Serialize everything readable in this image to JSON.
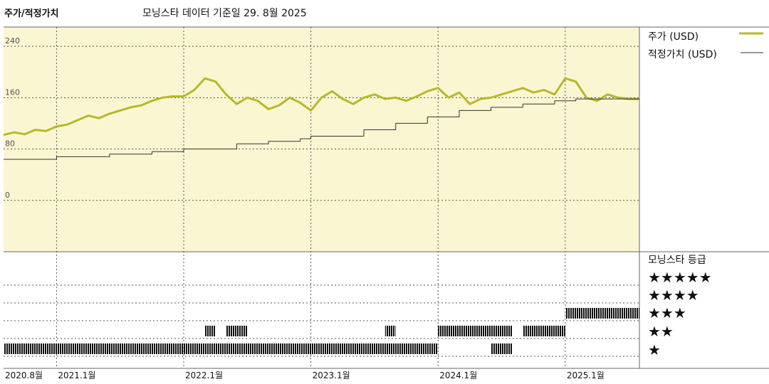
{
  "header": {
    "title": "주가/적정가치",
    "date_label": "모닝스타 데이터 기준일 29. 8월 2025"
  },
  "legend": {
    "price_label": "주가 (USD)",
    "fair_value_label": "적정가치 (USD)",
    "rating_title": "모닝스타 등급",
    "star_rows": [
      "★★★★★",
      "★★★★",
      "★★★",
      "★★",
      "★"
    ]
  },
  "colors": {
    "price": "#b7b82a",
    "fair_value": "#333333",
    "panel_bg": "#faf6d2",
    "grid": "#555555"
  },
  "chart_data": {
    "type": "line",
    "title": "주가/적정가치",
    "x_axis": {
      "start": "2020-08",
      "end": "2025-08",
      "tick_labels": [
        "2020.8월",
        "2021.1월",
        "2022.1월",
        "2023.1월",
        "2024.1월",
        "2025.1월"
      ],
      "tick_dates": [
        "2020-08",
        "2021-01",
        "2022-01",
        "2023-01",
        "2024-01",
        "2025-01"
      ]
    },
    "y_axis": {
      "ticks": [
        0,
        80,
        160,
        240
      ],
      "ylim": [
        -80,
        270
      ]
    },
    "series": [
      {
        "name": "주가 (USD)",
        "points": [
          [
            "2020-08",
            102
          ],
          [
            "2020-09",
            106
          ],
          [
            "2020-10",
            103
          ],
          [
            "2020-11",
            110
          ],
          [
            "2020-12",
            108
          ],
          [
            "2021-01",
            115
          ],
          [
            "2021-02",
            118
          ],
          [
            "2021-03",
            125
          ],
          [
            "2021-04",
            132
          ],
          [
            "2021-05",
            128
          ],
          [
            "2021-06",
            135
          ],
          [
            "2021-07",
            140
          ],
          [
            "2021-08",
            145
          ],
          [
            "2021-09",
            148
          ],
          [
            "2021-10",
            155
          ],
          [
            "2021-11",
            160
          ],
          [
            "2021-12",
            162
          ],
          [
            "2022-01",
            162
          ],
          [
            "2022-02",
            172
          ],
          [
            "2022-03",
            190
          ],
          [
            "2022-04",
            185
          ],
          [
            "2022-05",
            165
          ],
          [
            "2022-06",
            150
          ],
          [
            "2022-07",
            160
          ],
          [
            "2022-08",
            155
          ],
          [
            "2022-09",
            142
          ],
          [
            "2022-10",
            148
          ],
          [
            "2022-11",
            160
          ],
          [
            "2022-12",
            152
          ],
          [
            "2023-01",
            140
          ],
          [
            "2023-02",
            160
          ],
          [
            "2023-03",
            170
          ],
          [
            "2023-04",
            158
          ],
          [
            "2023-05",
            150
          ],
          [
            "2023-06",
            160
          ],
          [
            "2023-07",
            165
          ],
          [
            "2023-08",
            158
          ],
          [
            "2023-09",
            160
          ],
          [
            "2023-10",
            155
          ],
          [
            "2023-11",
            162
          ],
          [
            "2023-12",
            170
          ],
          [
            "2024-01",
            175
          ],
          [
            "2024-02",
            160
          ],
          [
            "2024-03",
            168
          ],
          [
            "2024-04",
            150
          ],
          [
            "2024-05",
            158
          ],
          [
            "2024-06",
            160
          ],
          [
            "2024-07",
            165
          ],
          [
            "2024-08",
            170
          ],
          [
            "2024-09",
            175
          ],
          [
            "2024-10",
            168
          ],
          [
            "2024-11",
            172
          ],
          [
            "2024-12",
            165
          ],
          [
            "2025-01",
            190
          ],
          [
            "2025-02",
            185
          ],
          [
            "2025-03",
            160
          ],
          [
            "2025-04",
            155
          ],
          [
            "2025-05",
            165
          ],
          [
            "2025-06",
            160
          ],
          [
            "2025-07",
            158
          ],
          [
            "2025-08",
            158
          ]
        ]
      },
      {
        "name": "적정가치 (USD)",
        "points": [
          [
            "2020-08",
            64
          ],
          [
            "2020-12",
            64
          ],
          [
            "2021-01",
            68
          ],
          [
            "2021-06",
            72
          ],
          [
            "2021-10",
            76
          ],
          [
            "2022-01",
            80
          ],
          [
            "2022-06",
            88
          ],
          [
            "2022-09",
            92
          ],
          [
            "2022-12",
            96
          ],
          [
            "2023-01",
            100
          ],
          [
            "2023-06",
            110
          ],
          [
            "2023-09",
            120
          ],
          [
            "2023-12",
            130
          ],
          [
            "2024-03",
            140
          ],
          [
            "2024-06",
            145
          ],
          [
            "2024-09",
            150
          ],
          [
            "2024-12",
            155
          ],
          [
            "2025-02",
            158
          ],
          [
            "2025-05",
            158
          ],
          [
            "2025-08",
            158
          ]
        ]
      }
    ],
    "rating_bands": [
      {
        "stars": 1,
        "start": "2020-08",
        "end": "2022-12"
      },
      {
        "stars": 1,
        "start": "2022-12",
        "end": "2024-01"
      },
      {
        "stars": 1,
        "start": "2024-06",
        "end": "2024-08"
      },
      {
        "stars": 2,
        "start": "2022-03",
        "end": "2022-04"
      },
      {
        "stars": 2,
        "start": "2022-05",
        "end": "2022-07"
      },
      {
        "stars": 2,
        "start": "2023-08",
        "end": "2023-09"
      },
      {
        "stars": 2,
        "start": "2024-01",
        "end": "2024-08"
      },
      {
        "stars": 2,
        "start": "2024-09",
        "end": "2025-01"
      },
      {
        "stars": 3,
        "start": "2025-01",
        "end": "2025-08"
      }
    ]
  }
}
